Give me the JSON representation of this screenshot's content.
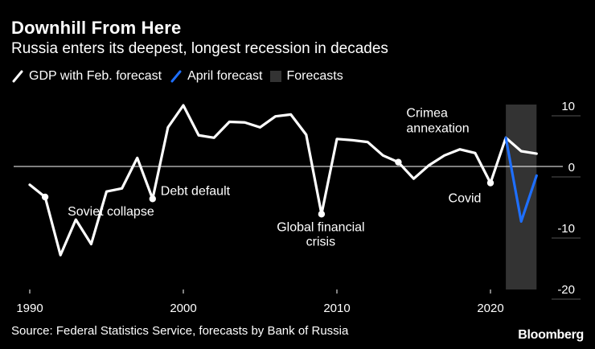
{
  "header": {
    "title": "Downhill From Here",
    "subtitle": "Russia enters its deepest, longest recession in decades"
  },
  "legend": [
    {
      "label": "GDP with Feb. forecast",
      "color": "#ffffff",
      "icon": "line-slash-icon"
    },
    {
      "label": "April forecast",
      "color": "#1e6fff",
      "icon": "line-slash-icon"
    },
    {
      "label": "Forecasts",
      "color": "#333333",
      "icon": "shaded-box-icon"
    }
  ],
  "footer": {
    "source": "Source: Federal Statistics Service, forecasts by Bank of Russia",
    "brand": "Bloomberg"
  },
  "chart_data": {
    "type": "line",
    "title": "Downhill From Here",
    "subtitle": "Russia enters its deepest, longest recession in decades",
    "xlabel": "",
    "ylabel": "",
    "xlim": [
      1989,
      2024
    ],
    "ylim": [
      -20,
      10
    ],
    "x_ticks": [
      1990,
      2000,
      2010,
      2020
    ],
    "x_tick_labels": [
      "1990",
      "2000",
      "2010",
      "2020"
    ],
    "y_ticks": [
      10,
      0,
      -10,
      -20
    ],
    "y_tick_labels": [
      "10",
      "0",
      "-10",
      "-20"
    ],
    "zero_line": true,
    "forecast_region": {
      "from": 2021,
      "to": 2023,
      "color": "#333333",
      "label": "Forecasts"
    },
    "series": [
      {
        "name": "GDP with Feb. forecast",
        "color": "#ffffff",
        "x": [
          1990,
          1991,
          1992,
          1993,
          1994,
          1995,
          1996,
          1997,
          1998,
          1999,
          2000,
          2001,
          2002,
          2003,
          2004,
          2005,
          2006,
          2007,
          2008,
          2009,
          2010,
          2011,
          2012,
          2013,
          2014,
          2015,
          2016,
          2017,
          2018,
          2019,
          2020,
          2021,
          2022,
          2023
        ],
        "values": [
          -3,
          -5,
          -14.5,
          -8.7,
          -12.7,
          -4.1,
          -3.6,
          1.4,
          -5.3,
          6.4,
          10,
          5.1,
          4.7,
          7.3,
          7.2,
          6.4,
          8.2,
          8.5,
          5.2,
          -7.8,
          4.5,
          4.3,
          4,
          1.8,
          0.7,
          -2,
          0.2,
          1.8,
          2.8,
          2.2,
          -2.7,
          4.7,
          2.5,
          2.1
        ]
      },
      {
        "name": "April forecast",
        "color": "#1e6fff",
        "x": [
          2021,
          2022,
          2023
        ],
        "values": [
          4.7,
          -9,
          -1.5
        ]
      }
    ],
    "annotations": [
      {
        "label": "Soviet collapse",
        "x": 1991,
        "y": -5
      },
      {
        "label": "Debt default",
        "x": 1998,
        "y": -5.3
      },
      {
        "label": "Global financial crisis",
        "lines": [
          "Global financial",
          "crisis"
        ],
        "x": 2009,
        "y": -7.8
      },
      {
        "label": "Crimea annexation",
        "lines": [
          "Crimea",
          "annexation"
        ],
        "x": 2014,
        "y": 0.7
      },
      {
        "label": "Covid",
        "x": 2020,
        "y": -2.7
      }
    ]
  }
}
